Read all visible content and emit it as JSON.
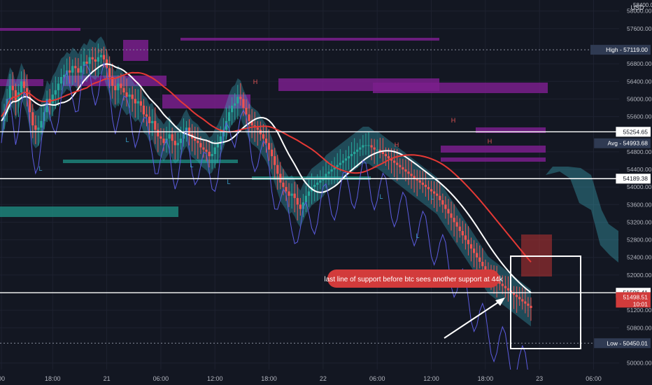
{
  "chart_data": {
    "type": "candlestick",
    "title": "",
    "xlabel": "",
    "ylabel": "",
    "currency": "USD",
    "ylim": [
      49850,
      58250
    ],
    "x_ticks": [
      {
        "label": "00",
        "i": 0
      },
      {
        "label": "18:00",
        "i": 18
      },
      {
        "label": "21",
        "i": 37
      },
      {
        "label": "06:00",
        "i": 56
      },
      {
        "label": "12:00",
        "i": 75
      },
      {
        "label": "18:00",
        "i": 94
      },
      {
        "label": "22",
        "i": 113
      },
      {
        "label": "06:00",
        "i": 132
      },
      {
        "label": "12:00",
        "i": 151
      },
      {
        "label": "18:00",
        "i": 170
      },
      {
        "label": "23",
        "i": 189
      },
      {
        "label": "06:00",
        "i": 208
      }
    ],
    "y_ticks": [
      58000,
      57600,
      56800,
      56400,
      56000,
      55600,
      54800,
      54400,
      54000,
      53600,
      53200,
      52800,
      52400,
      52000,
      51200,
      50800,
      50000
    ],
    "price_labels": [
      {
        "text": "High - 57119.00",
        "value": 57119,
        "color": "#2f3a52"
      },
      {
        "text": "55254.65",
        "value": 55254.65,
        "color": "#ffffff"
      },
      {
        "text": "Avg - 54993.68",
        "value": 54993.68,
        "color": "#2f3a52"
      },
      {
        "text": "54189.38",
        "value": 54189.38,
        "color": "#ffffff"
      },
      {
        "text": "51596.41",
        "value": 51596.41,
        "color": "#ffffff"
      },
      {
        "text": "51498.51",
        "value": 51498.51,
        "sub": "10:01",
        "color": "#d13b3b"
      },
      {
        "text": "Low - 50450.01",
        "value": 50450.01,
        "color": "#2f3a52"
      }
    ],
    "hlines": [
      55254.65,
      54189.38,
      51596.41
    ],
    "annotation": "last line of support before btc sees another support at 44k",
    "markers": {
      "H": "H",
      "L": "L"
    },
    "series": [
      {
        "name": "Close",
        "values": [
          55500,
          55700,
          56000,
          56300,
          56200,
          55950,
          56150,
          56400,
          56250,
          56050,
          55700,
          55400,
          55300,
          55350,
          55500,
          55700,
          56000,
          55900,
          56100,
          56200,
          56350,
          56500,
          56550,
          56650,
          56600,
          56750,
          56700,
          56600,
          56750,
          56850,
          56800,
          56950,
          56900,
          56850,
          56950,
          57000,
          56900,
          56700,
          56500,
          56300,
          56200,
          56350,
          56250,
          56150,
          56050,
          56100,
          56000,
          55900,
          55950,
          55850,
          55650,
          55600,
          55450,
          55500,
          55300,
          55150,
          55100,
          55000,
          55100,
          55200,
          55050,
          54950,
          55000,
          55100,
          55250,
          55350,
          55200,
          55100,
          55050,
          55000,
          54900,
          54850,
          54800,
          54700,
          54750,
          54900,
          55000,
          55150,
          55300,
          55500,
          55700,
          55850,
          55900,
          56050,
          56000,
          55800,
          55650,
          55500,
          55400,
          55350,
          55300,
          55200,
          55100,
          55000,
          54850,
          54700,
          54500,
          54300,
          54100,
          54000,
          53900,
          53800,
          53850,
          53750,
          53600,
          53500,
          53650,
          53800,
          53900,
          54000,
          54050,
          54100,
          54150,
          54200,
          54300,
          54350,
          54400,
          54450,
          54500,
          54550,
          54600,
          54650,
          54700,
          54750,
          54800,
          54850,
          54900,
          54950,
          54950,
          54950,
          54900,
          54850,
          54850,
          54800,
          54750,
          54700,
          54650,
          54600,
          54550,
          54500,
          54450,
          54400,
          54350,
          54300,
          54250,
          54200,
          54150,
          54100,
          54050,
          54000,
          53950,
          53900,
          53850,
          53800,
          53700,
          53600,
          53500,
          53400,
          53300,
          53200,
          53100,
          53000,
          52900,
          52800,
          52700,
          52600,
          52500,
          52400,
          52300,
          52200,
          52100,
          52000,
          51950,
          51900,
          51850,
          51800,
          51750,
          51700,
          51650,
          51600,
          51550,
          51500,
          51450,
          51400,
          51350,
          51300,
          51250
        ]
      }
    ]
  }
}
